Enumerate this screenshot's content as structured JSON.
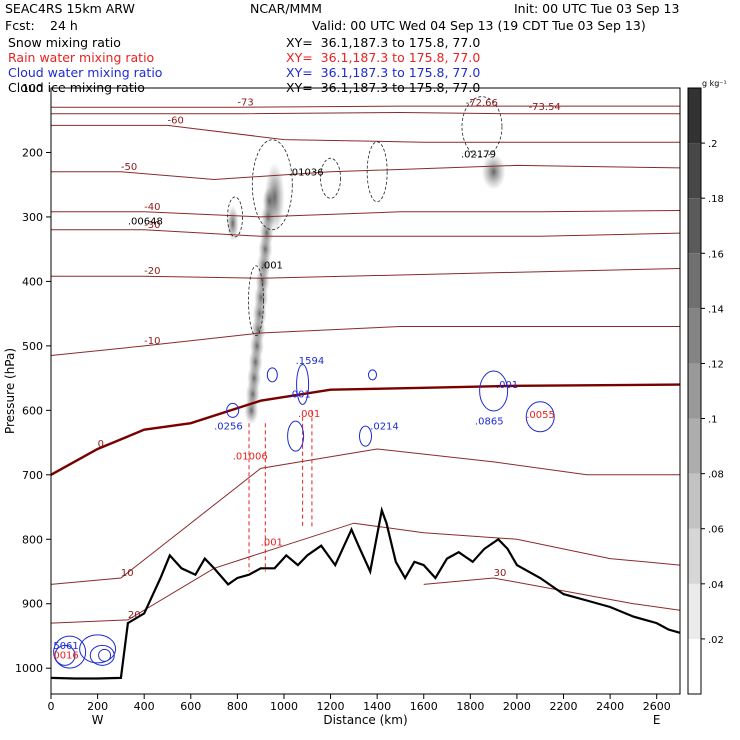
{
  "header": {
    "model": "SEAC4RS 15km ARW",
    "org": "NCAR/MMM",
    "init": "Init: 00 UTC Tue 03 Sep 13",
    "fcst_label": "Fcst:",
    "fcst_value": "24 h",
    "valid": "Valid: 00 UTC Wed 04 Sep 13 (19 CDT Tue 03 Sep 13)",
    "fields": [
      {
        "name": "Snow mixing ratio",
        "xy": "XY=  36.1,187.3 to 175.8, 77.0",
        "color": "#000000"
      },
      {
        "name": "Rain water mixing ratio",
        "xy": "XY=  36.1,187.3 to 175.8, 77.0",
        "color": "#e8231f"
      },
      {
        "name": "Cloud water mixing ratio",
        "xy": "XY=  36.1,187.3 to 175.8, 77.0",
        "color": "#1e2bd0"
      },
      {
        "name": "Cloud ice mixing ratio",
        "xy": "XY=  36.1,187.3 to 175.8, 77.0",
        "color": "#000000"
      }
    ]
  },
  "chart_data": {
    "type": "cross-section",
    "xlabel": "Distance (km)",
    "ylabel": "Pressure (hPa)",
    "xlim": [
      0,
      2700
    ],
    "ylim": [
      1040,
      100
    ],
    "x_ticks": [
      0,
      200,
      400,
      600,
      800,
      1000,
      1200,
      1400,
      1600,
      1800,
      2000,
      2200,
      2400,
      2600
    ],
    "y_ticks": [
      200,
      300,
      400,
      500,
      600,
      700,
      800,
      900,
      1000
    ],
    "y_top_label": "100",
    "endpoints": {
      "left": "W",
      "right": "E"
    },
    "colorbar": {
      "unit": "g kg⁻¹",
      "levels": [
        0.02,
        0.04,
        0.06,
        0.08,
        0.1,
        0.12,
        0.14,
        0.16,
        0.18,
        0.2
      ],
      "labels": [
        ".02",
        ".04",
        ".06",
        ".08",
        ".1",
        ".12",
        ".14",
        ".16",
        ".18",
        ".2"
      ]
    },
    "terrain": [
      [
        0,
        1015
      ],
      [
        100,
        1016
      ],
      [
        200,
        1016
      ],
      [
        300,
        1015
      ],
      [
        330,
        930
      ],
      [
        400,
        915
      ],
      [
        470,
        860
      ],
      [
        510,
        825
      ],
      [
        560,
        845
      ],
      [
        620,
        855
      ],
      [
        660,
        830
      ],
      [
        700,
        845
      ],
      [
        760,
        870
      ],
      [
        800,
        860
      ],
      [
        850,
        855
      ],
      [
        900,
        845
      ],
      [
        960,
        845
      ],
      [
        1010,
        825
      ],
      [
        1060,
        840
      ],
      [
        1100,
        825
      ],
      [
        1160,
        810
      ],
      [
        1220,
        840
      ],
      [
        1290,
        785
      ],
      [
        1320,
        810
      ],
      [
        1370,
        850
      ],
      [
        1420,
        755
      ],
      [
        1440,
        775
      ],
      [
        1480,
        835
      ],
      [
        1520,
        860
      ],
      [
        1560,
        835
      ],
      [
        1600,
        840
      ],
      [
        1650,
        860
      ],
      [
        1700,
        830
      ],
      [
        1750,
        820
      ],
      [
        1810,
        835
      ],
      [
        1860,
        815
      ],
      [
        1920,
        800
      ],
      [
        1960,
        815
      ],
      [
        2000,
        840
      ],
      [
        2100,
        860
      ],
      [
        2200,
        885
      ],
      [
        2300,
        895
      ],
      [
        2400,
        905
      ],
      [
        2500,
        920
      ],
      [
        2600,
        930
      ],
      [
        2650,
        940
      ],
      [
        2700,
        945
      ]
    ],
    "temperature_contours": [
      {
        "value": -73,
        "label": "-73",
        "points": [
          [
            0,
            130
          ],
          [
            800,
            130
          ],
          [
            1500,
            128
          ],
          [
            2000,
            128
          ],
          [
            2700,
            128
          ]
        ]
      },
      {
        "value": -70,
        "label": "",
        "points": [
          [
            0,
            140
          ],
          [
            800,
            140
          ],
          [
            1500,
            138
          ],
          [
            2000,
            140
          ],
          [
            2700,
            140
          ]
        ]
      },
      {
        "value": -60,
        "label": "-60",
        "points": [
          [
            0,
            158
          ],
          [
            500,
            158
          ],
          [
            1000,
            180
          ],
          [
            1600,
            184
          ],
          [
            2700,
            184
          ]
        ]
      },
      {
        "value": -50,
        "label": "-50",
        "points": [
          [
            0,
            230
          ],
          [
            300,
            230
          ],
          [
            700,
            242
          ],
          [
            1200,
            230
          ],
          [
            2000,
            220
          ],
          [
            2700,
            224
          ]
        ]
      },
      {
        "value": -40,
        "label": "-40",
        "points": [
          [
            0,
            292
          ],
          [
            400,
            292
          ],
          [
            900,
            300
          ],
          [
            1500,
            292
          ],
          [
            2100,
            292
          ],
          [
            2700,
            290
          ]
        ]
      },
      {
        "value": -30,
        "label": "-30",
        "points": [
          [
            0,
            320
          ],
          [
            400,
            320
          ],
          [
            900,
            330
          ],
          [
            1500,
            330
          ],
          [
            2100,
            330
          ],
          [
            2700,
            325
          ]
        ]
      },
      {
        "value": -20,
        "label": "-20",
        "points": [
          [
            0,
            392
          ],
          [
            400,
            392
          ],
          [
            900,
            395
          ],
          [
            1500,
            390
          ],
          [
            2100,
            385
          ],
          [
            2700,
            380
          ]
        ]
      },
      {
        "value": -10,
        "label": "-10",
        "points": [
          [
            0,
            515
          ],
          [
            400,
            500
          ],
          [
            900,
            480
          ],
          [
            1500,
            470
          ],
          [
            2100,
            470
          ],
          [
            2700,
            470
          ]
        ]
      },
      {
        "value": 0,
        "label": "0",
        "points": [
          [
            0,
            700
          ],
          [
            200,
            660
          ],
          [
            400,
            630
          ],
          [
            600,
            620
          ],
          [
            900,
            585
          ],
          [
            1200,
            568
          ],
          [
            1600,
            565
          ],
          [
            2000,
            562
          ],
          [
            2700,
            560
          ]
        ]
      },
      {
        "value": 10,
        "label": "10",
        "points": [
          [
            0,
            870
          ],
          [
            300,
            860
          ],
          [
            900,
            690
          ],
          [
            1400,
            660
          ],
          [
            1900,
            680
          ],
          [
            2300,
            700
          ],
          [
            2700,
            700
          ]
        ]
      },
      {
        "value": 20,
        "label": "20",
        "points": [
          [
            0,
            930
          ],
          [
            330,
            925
          ],
          [
            700,
            845
          ],
          [
            1000,
            810
          ],
          [
            1300,
            775
          ],
          [
            1600,
            790
          ],
          [
            2000,
            800
          ],
          [
            2400,
            830
          ],
          [
            2700,
            840
          ]
        ]
      },
      {
        "value": 30,
        "label": "30",
        "points": [
          [
            1600,
            870
          ],
          [
            1900,
            860
          ],
          [
            2200,
            880
          ],
          [
            2500,
            900
          ],
          [
            2700,
            910
          ]
        ]
      }
    ],
    "annotations": [
      {
        "text": "-72.66",
        "x": 1780,
        "p": 128,
        "color": "#8b1a1a"
      },
      {
        "text": "-73.54",
        "x": 2050,
        "p": 134,
        "color": "#8b1a1a"
      },
      {
        "text": ".02179",
        "x": 1760,
        "p": 208,
        "color": "#000000"
      },
      {
        "text": ".01036",
        "x": 1020,
        "p": 236,
        "color": "#000000"
      },
      {
        "text": ".00648",
        "x": 330,
        "p": 312,
        "color": "#000000"
      },
      {
        "text": ".001",
        "x": 900,
        "p": 380,
        "color": "#000000"
      },
      {
        "text": ".1594",
        "x": 1050,
        "p": 528,
        "color": "#1e2bd0"
      },
      {
        "text": ".001",
        "x": 1020,
        "p": 580,
        "color": "#1e2bd0"
      },
      {
        "text": ".001",
        "x": 1910,
        "p": 565,
        "color": "#1e2bd0"
      },
      {
        "text": ".0256",
        "x": 700,
        "p": 630,
        "color": "#1e2bd0"
      },
      {
        "text": ".0214",
        "x": 1370,
        "p": 630,
        "color": "#1e2bd0"
      },
      {
        "text": ".0865",
        "x": 1820,
        "p": 622,
        "color": "#1e2bd0"
      },
      {
        "text": ".0055",
        "x": 2040,
        "p": 612,
        "color": "#e8231f"
      },
      {
        "text": ".001",
        "x": 1060,
        "p": 610,
        "color": "#e8231f"
      },
      {
        "text": ".01006",
        "x": 780,
        "p": 676,
        "color": "#e8231f"
      },
      {
        "text": ".001",
        "x": 900,
        "p": 810,
        "color": "#e8231f"
      },
      {
        "text": "5061",
        "x": 10,
        "p": 970,
        "color": "#1e2bd0"
      },
      {
        "text": "0016",
        "x": 10,
        "p": 985,
        "color": "#e8231f"
      }
    ]
  }
}
